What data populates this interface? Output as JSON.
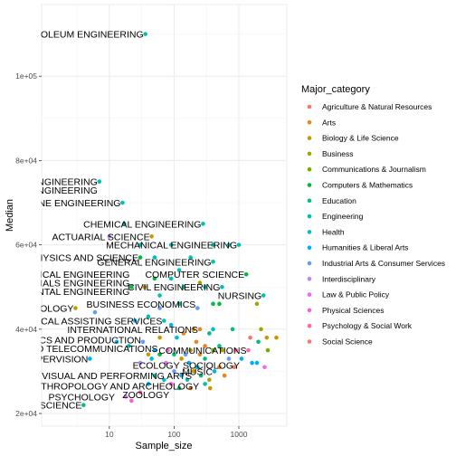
{
  "chart_data": {
    "type": "scatter",
    "xlabel": "Sample_size",
    "ylabel": "Median",
    "x_scale": "log10",
    "xlim": [
      0.9,
      5500
    ],
    "ylim": [
      17000,
      117000
    ],
    "x_ticks": [
      {
        "value": 10,
        "label": "10"
      },
      {
        "value": 100,
        "label": "100"
      },
      {
        "value": 1000,
        "label": "1000"
      }
    ],
    "y_ticks": [
      {
        "value": 20000,
        "label": "2e+04"
      },
      {
        "value": 40000,
        "label": "4e+04"
      },
      {
        "value": 60000,
        "label": "6e+04"
      },
      {
        "value": 80000,
        "label": "8e+04"
      },
      {
        "value": 100000,
        "label": "1e+05"
      }
    ],
    "grid": true,
    "legend": {
      "title": "Major_category",
      "position": "right",
      "entries": [
        {
          "name": "Agriculture & Natural Resources",
          "color": "#F8766D"
        },
        {
          "name": "Arts",
          "color": "#E7861B"
        },
        {
          "name": "Biology & Life Science",
          "color": "#C99800"
        },
        {
          "name": "Business",
          "color": "#A3A500"
        },
        {
          "name": "Communications & Journalism",
          "color": "#6BB100"
        },
        {
          "name": "Computers & Mathematics",
          "color": "#00BA38"
        },
        {
          "name": "Education",
          "color": "#00BF7D"
        },
        {
          "name": "Engineering",
          "color": "#00C0AF"
        },
        {
          "name": "Health",
          "color": "#00BCD8"
        },
        {
          "name": "Humanities & Liberal Arts",
          "color": "#00B0F6"
        },
        {
          "name": "Industrial Arts & Consumer Services",
          "color": "#619CFF"
        },
        {
          "name": "Interdisciplinary",
          "color": "#B983FF"
        },
        {
          "name": "Law & Public Policy",
          "color": "#E76BF3"
        },
        {
          "name": "Physical Sciences",
          "color": "#FD61D1"
        },
        {
          "name": "Psychology & Social Work",
          "color": "#FF67A4"
        },
        {
          "name": "Social Science",
          "color": "#F8766D"
        }
      ]
    },
    "points": [
      {
        "x": 36,
        "y": 110000,
        "c": 7
      },
      {
        "x": 7,
        "y": 75000,
        "c": 7
      },
      {
        "x": 16,
        "y": 70000,
        "c": 7
      },
      {
        "x": 17,
        "y": 65000,
        "c": 7
      },
      {
        "x": 280,
        "y": 65000,
        "c": 7
      },
      {
        "x": 10,
        "y": 62000,
        "c": 11
      },
      {
        "x": 45,
        "y": 62000,
        "c": 2
      },
      {
        "x": 30,
        "y": 60000,
        "c": 7
      },
      {
        "x": 90,
        "y": 60000,
        "c": 7
      },
      {
        "x": 400,
        "y": 60000,
        "c": 7
      },
      {
        "x": 700,
        "y": 60000,
        "c": 7
      },
      {
        "x": 1000,
        "y": 60000,
        "c": 7
      },
      {
        "x": 30,
        "y": 57000,
        "c": 5
      },
      {
        "x": 50,
        "y": 57000,
        "c": 7
      },
      {
        "x": 180,
        "y": 57000,
        "c": 7
      },
      {
        "x": 400,
        "y": 56000,
        "c": 7
      },
      {
        "x": 120,
        "y": 54000,
        "c": 7
      },
      {
        "x": 1300,
        "y": 53000,
        "c": 5
      },
      {
        "x": 50,
        "y": 52000,
        "c": 5
      },
      {
        "x": 90,
        "y": 52000,
        "c": 7
      },
      {
        "x": 250,
        "y": 51000,
        "c": 3
      },
      {
        "x": 22,
        "y": 50000,
        "c": 5
      },
      {
        "x": 35,
        "y": 50000,
        "c": 2
      },
      {
        "x": 140,
        "y": 50000,
        "c": 7
      },
      {
        "x": 300,
        "y": 50000,
        "c": 7
      },
      {
        "x": 550,
        "y": 50000,
        "c": 7
      },
      {
        "x": 60,
        "y": 48000,
        "c": 7
      },
      {
        "x": 2400,
        "y": 48000,
        "c": 7
      },
      {
        "x": 1900,
        "y": 46000,
        "c": 3
      },
      {
        "x": 120,
        "y": 46000,
        "c": 7
      },
      {
        "x": 400,
        "y": 46000,
        "c": 5
      },
      {
        "x": 500,
        "y": 46000,
        "c": 5
      },
      {
        "x": 3,
        "y": 45000,
        "c": 2
      },
      {
        "x": 60,
        "y": 45000,
        "c": 10
      },
      {
        "x": 230,
        "y": 45000,
        "c": 10
      },
      {
        "x": 6,
        "y": 44000,
        "c": 10
      },
      {
        "x": 40,
        "y": 43000,
        "c": 7
      },
      {
        "x": 70,
        "y": 42000,
        "c": 7
      },
      {
        "x": 25,
        "y": 42000,
        "c": 9
      },
      {
        "x": 90,
        "y": 41000,
        "c": 9
      },
      {
        "x": 200,
        "y": 40000,
        "c": 2
      },
      {
        "x": 250,
        "y": 40000,
        "c": 1
      },
      {
        "x": 400,
        "y": 40000,
        "c": 8
      },
      {
        "x": 800,
        "y": 40000,
        "c": 6
      },
      {
        "x": 2200,
        "y": 40000,
        "c": 3
      },
      {
        "x": 140,
        "y": 39000,
        "c": 1
      },
      {
        "x": 350,
        "y": 39000,
        "c": 6
      },
      {
        "x": 60,
        "y": 38000,
        "c": 2
      },
      {
        "x": 110,
        "y": 38000,
        "c": 8
      },
      {
        "x": 1500,
        "y": 38000,
        "c": 0
      },
      {
        "x": 2700,
        "y": 38000,
        "c": 2
      },
      {
        "x": 3800,
        "y": 38000,
        "c": 2
      },
      {
        "x": 2000,
        "y": 37000,
        "c": 6
      },
      {
        "x": 13,
        "y": 37000,
        "c": 9
      },
      {
        "x": 33,
        "y": 37000,
        "c": 10
      },
      {
        "x": 220,
        "y": 37000,
        "c": 1
      },
      {
        "x": 300,
        "y": 36000,
        "c": 1
      },
      {
        "x": 500,
        "y": 36000,
        "c": 6
      },
      {
        "x": 20,
        "y": 36000,
        "c": 7
      },
      {
        "x": 50,
        "y": 35000,
        "c": 9
      },
      {
        "x": 80,
        "y": 35000,
        "c": 13
      },
      {
        "x": 180,
        "y": 35000,
        "c": 3
      },
      {
        "x": 400,
        "y": 35000,
        "c": 4
      },
      {
        "x": 550,
        "y": 35000,
        "c": 3
      },
      {
        "x": 900,
        "y": 35000,
        "c": 14
      },
      {
        "x": 1400,
        "y": 35000,
        "c": 14
      },
      {
        "x": 2800,
        "y": 35000,
        "c": 4
      },
      {
        "x": 40,
        "y": 34000,
        "c": 2
      },
      {
        "x": 60,
        "y": 34000,
        "c": 5
      },
      {
        "x": 100,
        "y": 34000,
        "c": 6
      },
      {
        "x": 150,
        "y": 34000,
        "c": 10
      },
      {
        "x": 250,
        "y": 34000,
        "c": 1
      },
      {
        "x": 700,
        "y": 33000,
        "c": 10
      },
      {
        "x": 5,
        "y": 33000,
        "c": 9
      },
      {
        "x": 45,
        "y": 33000,
        "c": 8
      },
      {
        "x": 130,
        "y": 33000,
        "c": 2
      },
      {
        "x": 300,
        "y": 33000,
        "c": 6
      },
      {
        "x": 1100,
        "y": 33000,
        "c": 9
      },
      {
        "x": 1600,
        "y": 32000,
        "c": 9
      },
      {
        "x": 1900,
        "y": 32000,
        "c": 9
      },
      {
        "x": 2500,
        "y": 31000,
        "c": 12
      },
      {
        "x": 30,
        "y": 32000,
        "c": 11
      },
      {
        "x": 75,
        "y": 32000,
        "c": 12
      },
      {
        "x": 170,
        "y": 32000,
        "c": 9
      },
      {
        "x": 230,
        "y": 31000,
        "c": 7
      },
      {
        "x": 500,
        "y": 31000,
        "c": 1
      },
      {
        "x": 850,
        "y": 31000,
        "c": 0
      },
      {
        "x": 100,
        "y": 30000,
        "c": 10
      },
      {
        "x": 200,
        "y": 30000,
        "c": 2
      },
      {
        "x": 420,
        "y": 30000,
        "c": 9
      },
      {
        "x": 600,
        "y": 29000,
        "c": 1
      },
      {
        "x": 130,
        "y": 29000,
        "c": 9
      },
      {
        "x": 260,
        "y": 29000,
        "c": 6
      },
      {
        "x": 50,
        "y": 29000,
        "c": 7
      },
      {
        "x": 70,
        "y": 28000,
        "c": 8
      },
      {
        "x": 160,
        "y": 28000,
        "c": 8
      },
      {
        "x": 350,
        "y": 28000,
        "c": 3
      },
      {
        "x": 40,
        "y": 27000,
        "c": 9
      },
      {
        "x": 90,
        "y": 27000,
        "c": 13
      },
      {
        "x": 300,
        "y": 27000,
        "c": 7
      },
      {
        "x": 180,
        "y": 26000,
        "c": 1
      },
      {
        "x": 360,
        "y": 26000,
        "c": 2
      },
      {
        "x": 120,
        "y": 26000,
        "c": 6
      },
      {
        "x": 30,
        "y": 25000,
        "c": 14
      },
      {
        "x": 18,
        "y": 24000,
        "c": 12
      },
      {
        "x": 22,
        "y": 23000,
        "c": 13
      },
      {
        "x": 4,
        "y": 22000,
        "c": 6
      }
    ],
    "labels": [
      {
        "text": "PETROLEUM ENGINEERING",
        "x": 36,
        "y": 110000
      },
      {
        "text": "MINING AND MINERAL ENGINEERING",
        "x": 7,
        "y": 75000
      },
      {
        "text": "METALLURGICAL ENGINEERING",
        "x": 7,
        "y": 73000
      },
      {
        "text": "NAVAL ARCHITECTURE AND MARINE ENGINEERING",
        "x": 16,
        "y": 70000
      },
      {
        "text": "CHEMICAL ENGINEERING",
        "x": 280,
        "y": 65000
      },
      {
        "text": "ACTUARIAL SCIENCE",
        "x": 45,
        "y": 62000
      },
      {
        "text": "MECHANICAL ENGINEERING",
        "x": 1000,
        "y": 60000
      },
      {
        "text": "ASTRONOMY AND ASTROPHYSICS AND SCIENCE",
        "x": 30,
        "y": 57000
      },
      {
        "text": "GENERAL ENGINEERING",
        "x": 400,
        "y": 56000
      },
      {
        "text": "ENGINEERING MECHANICS PHYSICAL ENGINEERING",
        "x": 22,
        "y": 53000
      },
      {
        "text": "MATERIALS SCIENCE AND MATERIALS ENGINEERING",
        "x": 22,
        "y": 51000
      },
      {
        "text": "COMPUTER SCIENCE",
        "x": 1300,
        "y": 53000
      },
      {
        "text": "ENVIRONMENTAL ENGINEERING",
        "x": 22,
        "y": 49000
      },
      {
        "text": "CIVIL ENGINEERING",
        "x": 550,
        "y": 50000
      },
      {
        "text": "NURSING",
        "x": 2400,
        "y": 48000
      },
      {
        "text": "BUSINESS ECONOMICS",
        "x": 230,
        "y": 46000
      },
      {
        "text": "PHARMACOLOGY AND NUTRITION SCIENCE AND TOXICOLOGY",
        "x": 3,
        "y": 45000
      },
      {
        "text": "MEDICAL ASSISTING SERVICES",
        "x": 70,
        "y": 42000
      },
      {
        "text": "INTERNATIONAL RELATIONS",
        "x": 250,
        "y": 40000
      },
      {
        "text": "ELECTRONICS AND PRODUCTION",
        "x": 33,
        "y": 37500
      },
      {
        "text": "RADIO TELEVISION AND TELECOMMUNICATIONS",
        "x": 60,
        "y": 35500
      },
      {
        "text": "COMMUNICATIONS",
        "x": 1400,
        "y": 35000
      },
      {
        "text": "PUBLIC ADMINISTRATION AND SUPERVISION",
        "x": 5,
        "y": 33000
      },
      {
        "text": "ECOLOGY",
        "x": 130,
        "y": 31500
      },
      {
        "text": "SOCIOLOGY",
        "x": 1100,
        "y": 31500
      },
      {
        "text": "MUSIC",
        "x": 420,
        "y": 30000
      },
      {
        "text": "VISUAL AND PERFORMING ARTS",
        "x": 200,
        "y": 29000
      },
      {
        "text": "ANTHROPOLOGY AND ARCHEOLOGY",
        "x": 260,
        "y": 26500
      },
      {
        "text": "PSYCHOLOGY",
        "x": 13,
        "y": 24000
      },
      {
        "text": "ZOOLOGY",
        "x": 90,
        "y": 24500
      },
      {
        "text": "LIBRARY SCIENCE",
        "x": 4,
        "y": 22000
      }
    ]
  }
}
